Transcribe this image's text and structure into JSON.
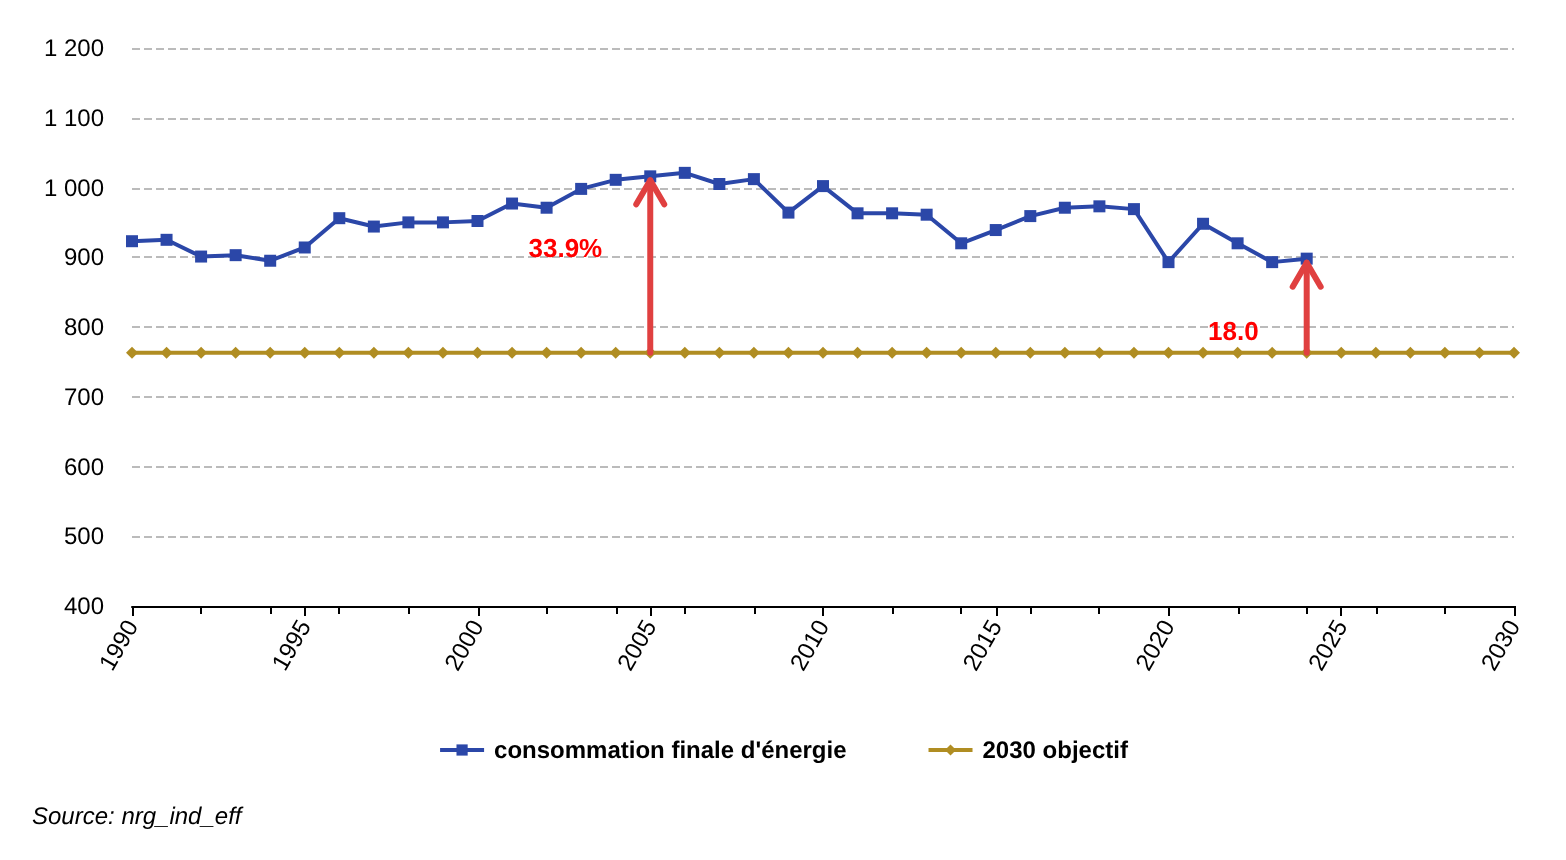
{
  "chart_data": {
    "type": "line",
    "x": [
      1990,
      1991,
      1992,
      1993,
      1994,
      1995,
      1996,
      1997,
      1998,
      1999,
      2000,
      2001,
      2002,
      2003,
      2004,
      2005,
      2006,
      2007,
      2008,
      2009,
      2010,
      2011,
      2012,
      2013,
      2014,
      2015,
      2016,
      2017,
      2018,
      2019,
      2020,
      2021,
      2022,
      2023,
      2024
    ],
    "series": [
      {
        "name": "consommation finale d'énergie",
        "color": "#2b47a8",
        "marker": "square",
        "values": [
          923,
          925,
          901,
          903,
          895,
          914,
          956,
          944,
          950,
          950,
          952,
          977,
          971,
          998,
          1011,
          1016,
          1021,
          1005,
          1012,
          964,
          1002,
          963,
          963,
          961,
          920,
          939,
          959,
          971,
          973,
          969,
          893,
          948,
          920,
          893,
          898
        ]
      },
      {
        "name": "2030 objectif",
        "color": "#b08d22",
        "marker": "diamond",
        "x": [
          1990,
          1991,
          1992,
          1993,
          1994,
          1995,
          1996,
          1997,
          1998,
          1999,
          2000,
          2001,
          2002,
          2003,
          2004,
          2005,
          2006,
          2007,
          2008,
          2009,
          2010,
          2011,
          2012,
          2013,
          2014,
          2015,
          2016,
          2017,
          2018,
          2019,
          2020,
          2021,
          2022,
          2023,
          2024,
          2025,
          2026,
          2027,
          2028,
          2029,
          2030
        ],
        "values": [
          763,
          763,
          763,
          763,
          763,
          763,
          763,
          763,
          763,
          763,
          763,
          763,
          763,
          763,
          763,
          763,
          763,
          763,
          763,
          763,
          763,
          763,
          763,
          763,
          763,
          763,
          763,
          763,
          763,
          763,
          763,
          763,
          763,
          763,
          763,
          763,
          763,
          763,
          763,
          763,
          763
        ]
      }
    ],
    "xlim": [
      1990,
      2030
    ],
    "xticks": [
      1990,
      1995,
      2000,
      2005,
      2010,
      2015,
      2020,
      2025,
      2030
    ],
    "ylim": [
      400,
      1200
    ],
    "yticks": [
      400,
      500,
      600,
      700,
      800,
      900,
      {
        "value": 1000,
        "label": "1 000"
      },
      {
        "value": 1100,
        "label": "1 100"
      },
      {
        "value": 1200,
        "label": "1 200"
      }
    ],
    "grid": "y",
    "legend": "bottom",
    "annotations": [
      {
        "text": "33.9%",
        "x": 2005,
        "y": 1016
      },
      {
        "text": "18.0",
        "x": 2024,
        "y": 898
      },
      "Source: nrg_ind_eff"
    ]
  }
}
